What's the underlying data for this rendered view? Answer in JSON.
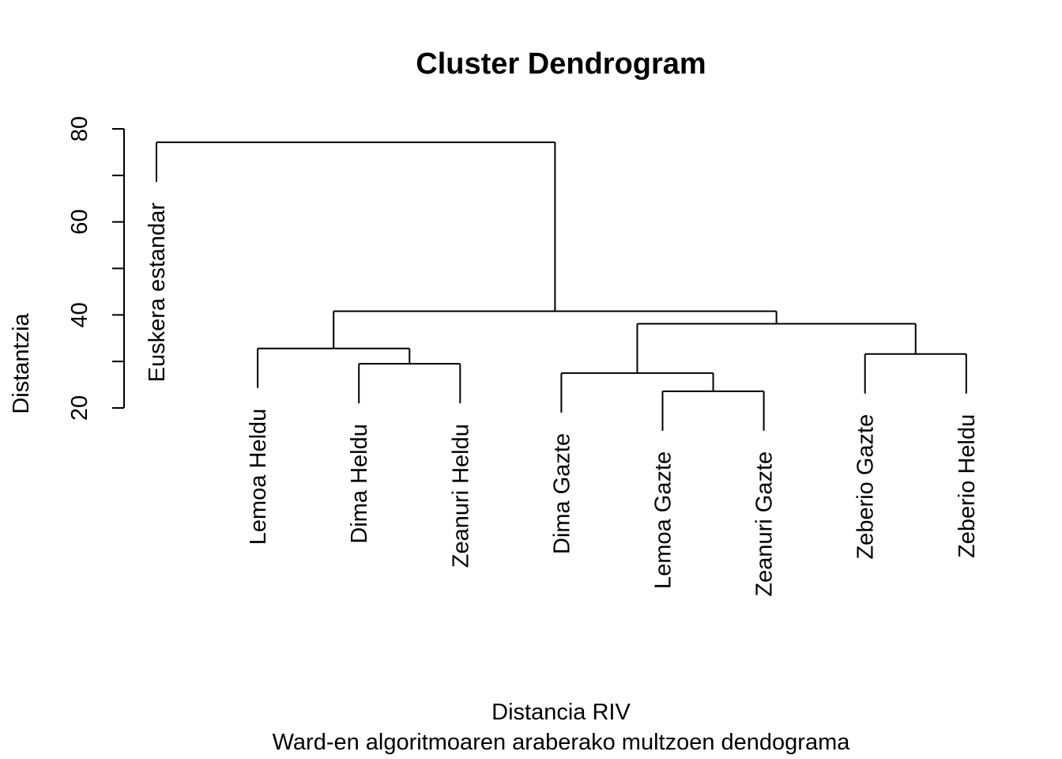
{
  "chart_data": {
    "type": "dendrogram",
    "title": "Cluster Dendrogram",
    "xlabel": "Distancia RIV",
    "subtitle": "Ward-en algoritmoaren araberako multzoen dendograma",
    "ylabel": "Distantzia",
    "ylim": [
      20,
      80
    ],
    "yticks": [
      20,
      30,
      40,
      50,
      60,
      70,
      80
    ],
    "ytick_labels": [
      "20",
      "",
      "40",
      "",
      "60",
      "",
      "80"
    ],
    "leaves": [
      "Euskera estandar",
      "Lemoa Heldu",
      "Dima Heldu",
      "Zeanuri Heldu",
      "Dima Gazte",
      "Lemoa Gazte",
      "Zeanuri Gazte",
      "Zeberio Gazte",
      "Zeberio Heldu"
    ],
    "merges": [
      {
        "left": "Lemoa Gazte",
        "right": "Zeanuri Gazte",
        "height": 23.6
      },
      {
        "left": "Dima Heldu",
        "right": "Zeanuri Heldu",
        "height": 29.5
      },
      {
        "left": "Dima Gazte",
        "right": "cluster1",
        "height": 27.5
      },
      {
        "left": "Zeberio Gazte",
        "right": "Zeberio Heldu",
        "height": 31.6
      },
      {
        "left": "Lemoa Heldu",
        "right": "cluster2",
        "height": 32.8
      },
      {
        "left": "cluster3",
        "right": "cluster4",
        "height": 38.1
      },
      {
        "left": "cluster5",
        "right": "cluster6",
        "height": 40.8
      },
      {
        "left": "Euskera estandar",
        "right": "cluster7",
        "height": 77.1
      }
    ],
    "leaf_label_top_offset": 8.5
  }
}
